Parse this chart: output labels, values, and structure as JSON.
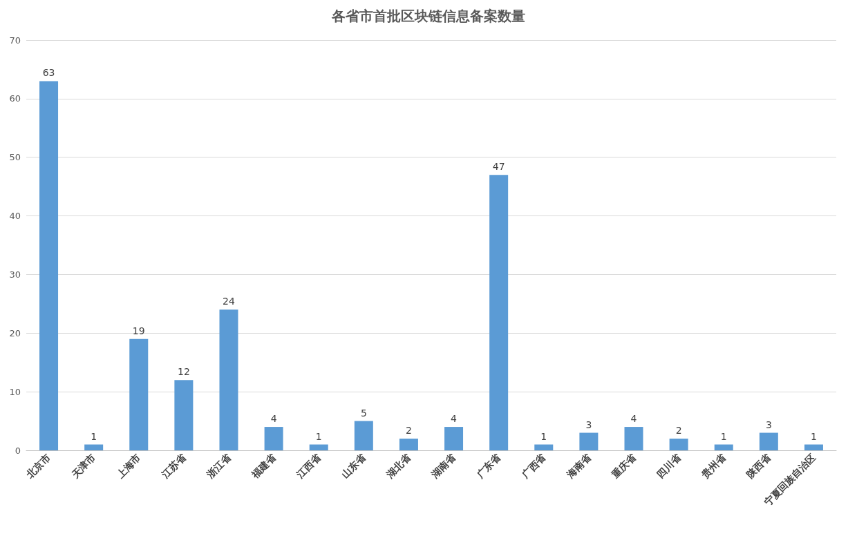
{
  "chart_data": {
    "type": "bar",
    "title": "各省市首批区块链信息备案数量",
    "categories": [
      "北京市",
      "天津市",
      "上海市",
      "江苏省",
      "浙江省",
      "福建省",
      "江西省",
      "山东省",
      "湖北省",
      "湖南省",
      "广东省",
      "广西省",
      "海南省",
      "重庆省",
      "四川省",
      "贵州省",
      "陕西省",
      "宁夏回族自治区"
    ],
    "values": [
      63,
      1,
      19,
      12,
      24,
      4,
      1,
      5,
      2,
      4,
      47,
      1,
      3,
      4,
      2,
      1,
      3,
      1
    ],
    "color": "#5b9bd5",
    "ylim": [
      0,
      70
    ],
    "yticks": [
      0,
      10,
      20,
      30,
      40,
      50,
      60,
      70
    ],
    "grid": "y",
    "data_labels": true
  }
}
